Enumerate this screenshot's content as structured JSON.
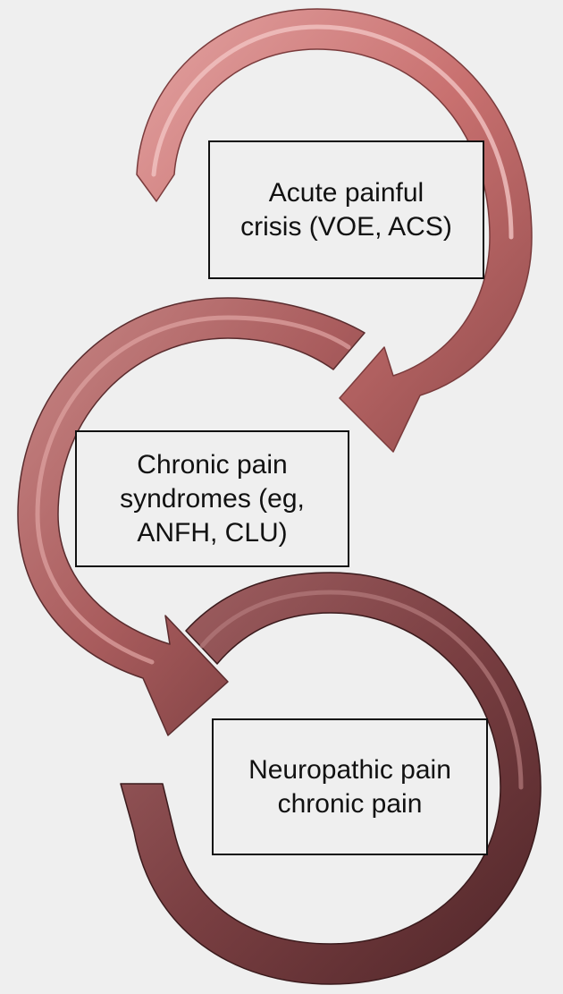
{
  "stages": [
    {
      "label": "Acute painful\ncrisis (VOE, ACS)",
      "arrow_color": "#c8706f"
    },
    {
      "label": "Chronic pain\nsyndromes (eg,\nANFH, CLU)",
      "arrow_color": "#a95c5d"
    },
    {
      "label": "Neuropathic pain\nchronic pain",
      "arrow_color": "#7a3f42"
    }
  ],
  "background": "#efefef"
}
